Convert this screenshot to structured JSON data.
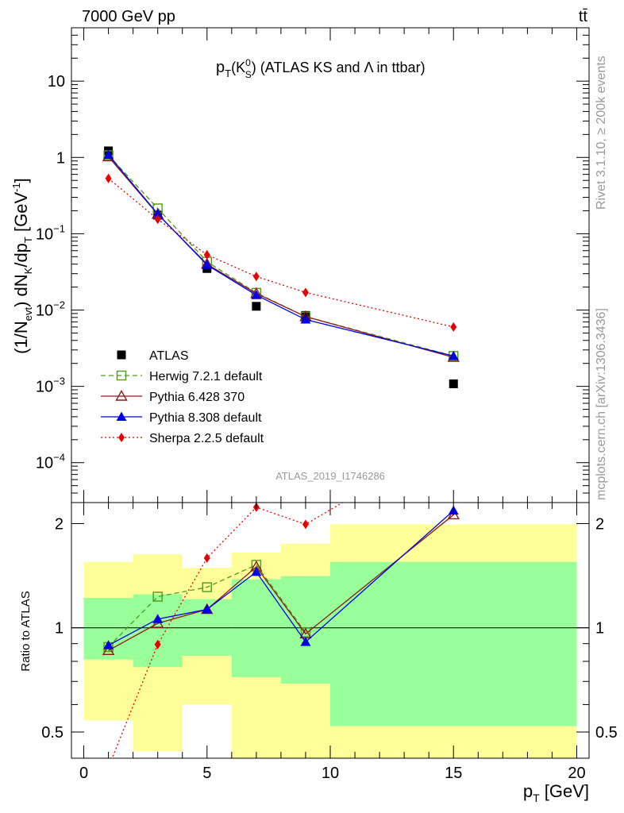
{
  "header": {
    "left": "7000 GeV pp",
    "right": "tt̄"
  },
  "side_texts": {
    "rivet": "Rivet 3.1.10, ≥ 200k events",
    "mcplots": "mcplots.cern.ch [arXiv:1306.3436]"
  },
  "chart_data": [
    {
      "type": "line",
      "panel": "main",
      "title": "p_T(K_S^0) (ATLAS KS and Λ in ttbar)",
      "title_parts": {
        "p": "p",
        "sub_t": "T",
        "open": "(K",
        "sup_0": "0",
        "sub_s": "S",
        "rest": ") (ATLAS KS and Λ in ttbar)"
      },
      "ylabel": "(1/N_evt) dN_K/dp_T [GeV^-1]",
      "ylabel_parts": {
        "a": "(1/N",
        "sub_evt": "evt",
        "b": ") dN",
        "sub_k": "K",
        "c": "/dp",
        "sub_t": "T",
        "d": " [GeV",
        "sup": "-1",
        "e": "]"
      },
      "yscale": "log",
      "ylim": [
        3e-05,
        50
      ],
      "xlim": [
        -0.5,
        20.5
      ],
      "y_ticks": [
        {
          "value": 10,
          "label": "10"
        },
        {
          "value": 1,
          "label": "1"
        },
        {
          "value": 0.1,
          "base": "10",
          "exp": "−1"
        },
        {
          "value": 0.01,
          "base": "10",
          "exp": "−2"
        },
        {
          "value": 0.001,
          "base": "10",
          "exp": "−3"
        },
        {
          "value": 0.0001,
          "base": "10",
          "exp": "−4"
        }
      ],
      "legend_position": "bottom-left",
      "watermark": "ATLAS_2019_I1746286",
      "series": [
        {
          "name": "ATLAS",
          "color": "#000000",
          "marker": "square-filled",
          "line": "none",
          "x": [
            1,
            3,
            5,
            7,
            9,
            15
          ],
          "y": [
            1.22,
            0.175,
            0.035,
            0.0112,
            0.0085,
            0.00108
          ]
        },
        {
          "name": "Herwig 7.2.1 default",
          "color": "#4d9a1e",
          "marker": "square-open",
          "line": "dashed",
          "x": [
            1,
            3,
            5,
            7,
            9,
            15
          ],
          "y": [
            1.07,
            0.215,
            0.043,
            0.0168,
            0.0082,
            0.0025
          ]
        },
        {
          "name": "Pythia 6.428 370",
          "color": "#8c1a1a",
          "marker": "triangle-open",
          "line": "solid",
          "x": [
            1,
            3,
            5,
            7,
            9,
            15
          ],
          "y": [
            1.02,
            0.18,
            0.04,
            0.0165,
            0.0082,
            0.0024
          ]
        },
        {
          "name": "Pythia 8.308 default",
          "color": "#0000e6",
          "marker": "triangle-filled",
          "line": "solid",
          "x": [
            1,
            3,
            5,
            7,
            9,
            15
          ],
          "y": [
            1.08,
            0.182,
            0.039,
            0.0157,
            0.0075,
            0.0025
          ]
        },
        {
          "name": "Sherpa 2.2.5 default",
          "color": "#e60000",
          "marker": "diamond-filled",
          "line": "dotted",
          "x": [
            1,
            3,
            5,
            7,
            9,
            15
          ],
          "y": [
            0.53,
            0.155,
            0.053,
            0.0275,
            0.017,
            0.006
          ]
        }
      ]
    },
    {
      "type": "line",
      "panel": "ratio",
      "ylabel": "Ratio to ATLAS",
      "xlabel": "p_T [GeV]",
      "xlabel_parts": {
        "p": "p",
        "sub_t": "T",
        "rest": " [GeV]"
      },
      "yscale": "log",
      "ylim": [
        0.42,
        2.3
      ],
      "xlim": [
        -0.5,
        20.5
      ],
      "x_ticks": [
        {
          "value": 0,
          "label": "0"
        },
        {
          "value": 5,
          "label": "5"
        },
        {
          "value": 10,
          "label": "10"
        },
        {
          "value": 15,
          "label": "15"
        },
        {
          "value": 20,
          "label": "20"
        }
      ],
      "y_ticks": [
        {
          "value": 0.5,
          "label": "0.5"
        },
        {
          "value": 1,
          "label": "1"
        },
        {
          "value": 2,
          "label": "2"
        }
      ],
      "bands": [
        {
          "x0": 0,
          "x1": 2,
          "inner": [
            0.81,
            1.22
          ],
          "outer": [
            0.54,
            1.55
          ]
        },
        {
          "x0": 2,
          "x1": 4,
          "inner": [
            0.77,
            1.25
          ],
          "outer": [
            0.44,
            1.63
          ]
        },
        {
          "x0": 4,
          "x1": 6,
          "inner": [
            0.83,
            1.21
          ],
          "outer": [
            0.6,
            1.49
          ]
        },
        {
          "x0": 6,
          "x1": 8,
          "inner": [
            0.72,
            1.38
          ],
          "outer": [
            0.37,
            1.65
          ]
        },
        {
          "x0": 8,
          "x1": 10,
          "inner": [
            0.69,
            1.41
          ],
          "outer": [
            0.36,
            1.75
          ]
        },
        {
          "x0": 10,
          "x1": 20,
          "inner": [
            0.52,
            1.55
          ],
          "outer": [
            0.36,
            1.99
          ]
        }
      ],
      "series": [
        {
          "name": "Herwig 7.2.1 default",
          "color": "#4d9a1e",
          "marker": "square-open",
          "line": "dashed",
          "x": [
            1,
            3,
            5,
            7,
            9
          ],
          "y": [
            0.88,
            1.23,
            1.31,
            1.52,
            0.97
          ]
        },
        {
          "name": "Pythia 6.428 370",
          "color": "#8c1a1a",
          "marker": "triangle-open",
          "line": "solid",
          "x": [
            1,
            3,
            5,
            7,
            9,
            15
          ],
          "y": [
            0.86,
            1.03,
            1.13,
            1.5,
            0.96,
            2.12
          ]
        },
        {
          "name": "Pythia 8.308 default",
          "color": "#0000e6",
          "marker": "triangle-filled",
          "line": "solid",
          "x": [
            1,
            3,
            5,
            7,
            9,
            15
          ],
          "y": [
            0.89,
            1.06,
            1.13,
            1.45,
            0.91,
            2.18
          ]
        },
        {
          "name": "Sherpa 2.2.5 default",
          "color": "#e60000",
          "marker": "diamond-filled",
          "line": "dotted",
          "x": [
            1,
            3,
            5,
            7,
            9,
            10.5
          ],
          "y": [
            0.395,
            0.895,
            1.59,
            2.23,
            1.99,
            2.3
          ]
        }
      ]
    }
  ],
  "colors": {
    "band_inner": "#99ff99",
    "band_outer": "#ffff99",
    "gray_text": "#999999"
  }
}
